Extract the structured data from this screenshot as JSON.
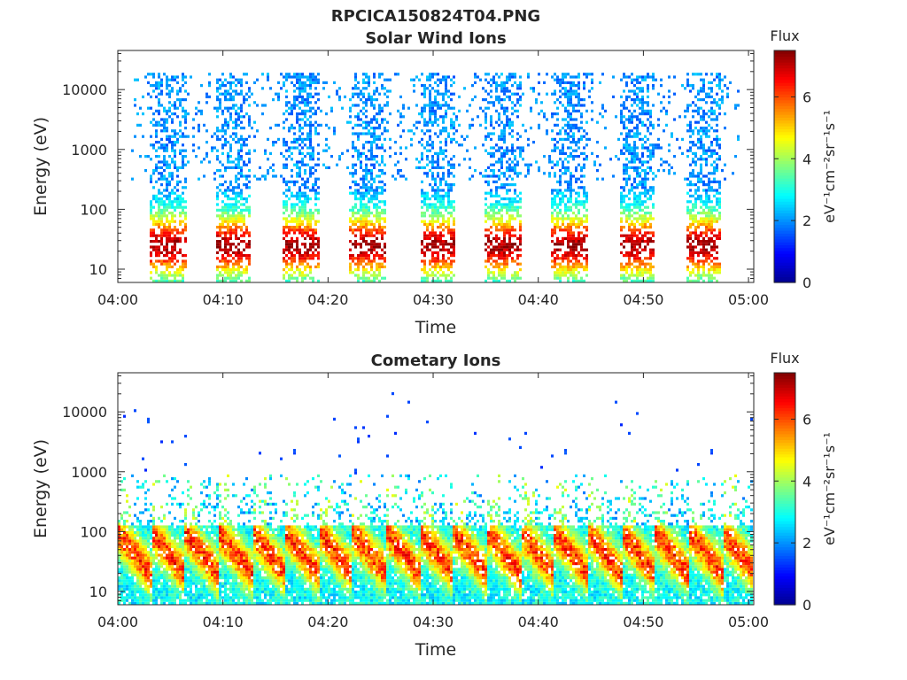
{
  "figure": {
    "title": "RPCICA150824T04.PNG"
  },
  "colormap": {
    "name": "jet",
    "stops": [
      "#00008f",
      "#0000ff",
      "#0080ff",
      "#00ffff",
      "#80ff80",
      "#ffff00",
      "#ff8000",
      "#ff0000",
      "#800000"
    ]
  },
  "chart_data": [
    {
      "type": "heatmap",
      "title": "Solar Wind Ions",
      "xlabel": "Time",
      "ylabel": "Energy (eV)",
      "x_ticks": [
        "04:00",
        "04:10",
        "04:20",
        "04:30",
        "04:40",
        "04:50",
        "05:00"
      ],
      "xlim_minutes": [
        0,
        60.5
      ],
      "y_scale": "log",
      "y_ticks": [
        "10",
        "100",
        "1000",
        "10000"
      ],
      "ylim": [
        6,
        45000
      ],
      "colorbar": {
        "label": "Flux",
        "unit": "eV⁻¹cm⁻²sr⁻¹s⁻¹",
        "ticks": [
          "0",
          "2",
          "4",
          "6"
        ],
        "range": [
          0,
          7.5
        ]
      },
      "pattern": {
        "kind": "periodic_bursts",
        "burst_centers_min": [
          4.8,
          11.0,
          17.5,
          23.8,
          30.5,
          36.8,
          43.0,
          49.5,
          55.8
        ],
        "burst_width_min": 3.5,
        "high_energy_band_eV": [
          200,
          20000
        ],
        "high_energy_flux": 1.5,
        "low_energy_peak_eV": 25,
        "low_energy_peak_flux": 5.0,
        "background_flux": 1.6
      }
    },
    {
      "type": "heatmap",
      "title": "Cometary Ions",
      "xlabel": "Time",
      "ylabel": "Energy (eV)",
      "x_ticks": [
        "04:00",
        "04:10",
        "04:20",
        "04:30",
        "04:40",
        "04:50",
        "05:00"
      ],
      "xlim_minutes": [
        0,
        60.5
      ],
      "y_scale": "log",
      "y_ticks": [
        "10",
        "100",
        "1000",
        "10000"
      ],
      "ylim": [
        6,
        45000
      ],
      "colorbar": {
        "label": "Flux",
        "unit": "eV⁻¹cm⁻²sr⁻¹s⁻¹",
        "ticks": [
          "0",
          "2",
          "4",
          "6"
        ],
        "range": [
          0,
          7.5
        ]
      },
      "pattern": {
        "kind": "dispersed_bursts",
        "burst_period_min": 3.2,
        "peak_energy_eV": 35,
        "peak_flux": 7.0,
        "upper_extent_eV": 500,
        "sparse_high_energy_flux": 1.2
      }
    }
  ]
}
